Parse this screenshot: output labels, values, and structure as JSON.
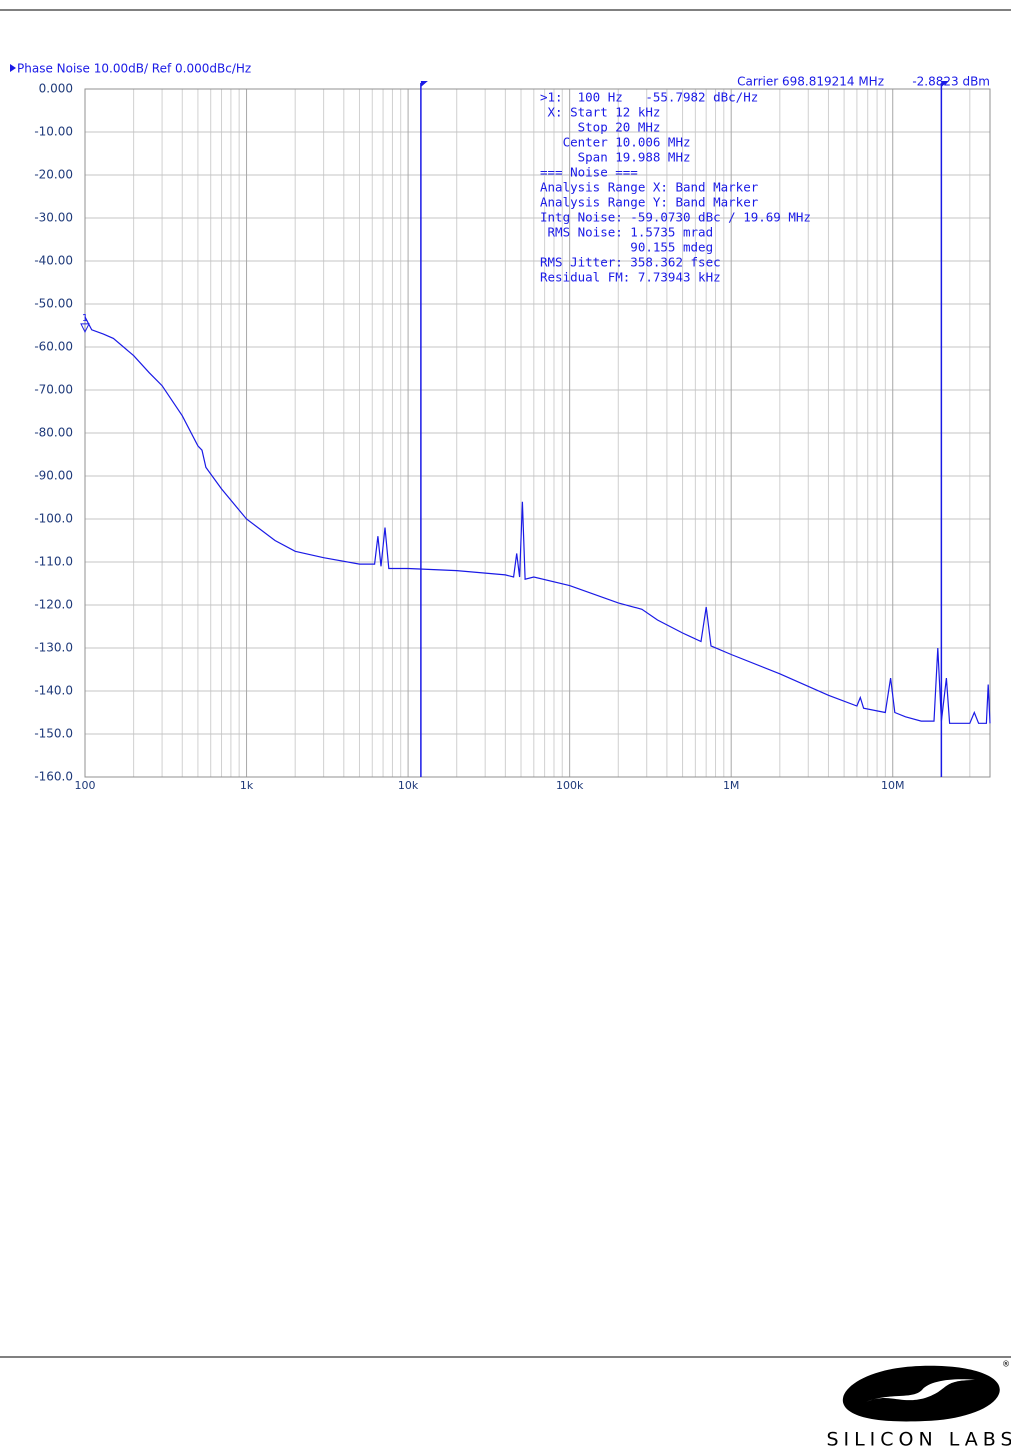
{
  "chart_data": {
    "type": "line",
    "title": "Phase Noise 10.00dB/ Ref 0.000dBc/Hz",
    "carrier": "Carrier 698.819214 MHz",
    "carrier_power": "-2.8823 dBm",
    "log_x": true,
    "grid": true,
    "xlim": [
      100,
      40000000
    ],
    "ylim": [
      -160,
      0
    ],
    "xticks": [
      100,
      {
        "value": 1000,
        "label": "1k"
      },
      {
        "value": 10000,
        "label": "10k"
      },
      {
        "value": 100000,
        "label": "100k"
      },
      {
        "value": 1000000,
        "label": "1M"
      },
      {
        "value": 10000000,
        "label": "10M"
      }
    ],
    "yticks": [
      {
        "value": 0,
        "label": "0.000"
      },
      {
        "value": -10,
        "label": "-10.00"
      },
      {
        "value": -20,
        "label": "-20.00"
      },
      {
        "value": -30,
        "label": "-30.00"
      },
      {
        "value": -40,
        "label": "-40.00"
      },
      {
        "value": -50,
        "label": "-50.00"
      },
      {
        "value": -60,
        "label": "-60.00"
      },
      {
        "value": -70,
        "label": "-70.00"
      },
      {
        "value": -80,
        "label": "-80.00"
      },
      {
        "value": -90,
        "label": "-90.00"
      },
      {
        "value": -100,
        "label": "-100.0"
      },
      {
        "value": -110,
        "label": "-110.0"
      },
      {
        "value": -120,
        "label": "-120.0"
      },
      {
        "value": -130,
        "label": "-130.0"
      },
      {
        "value": -140,
        "label": "-140.0"
      },
      {
        "value": -150,
        "label": "-150.0"
      },
      {
        "value": -160,
        "label": "-160.0"
      }
    ],
    "series": [
      {
        "color": "#1a1ae6",
        "x": [
          100,
          110,
          130,
          150,
          200,
          250,
          300,
          400,
          500,
          530,
          560,
          700,
          1000,
          1500,
          2000,
          3000,
          5000,
          6200,
          6500,
          6800,
          7200,
          7600,
          10000,
          20000,
          40000,
          45000,
          47000,
          49000,
          51000,
          53000,
          60000,
          100000,
          200000,
          280000,
          350000,
          500000,
          650000,
          700000,
          750000,
          1000000,
          2000000,
          4000000,
          6000000,
          6300000,
          6600000,
          9000000,
          9700000,
          10300000,
          12000000,
          15000000,
          18000000,
          19000000,
          20000000,
          21500000,
          22500000,
          30000000,
          32000000,
          34000000,
          38000000,
          39000000,
          40000000
        ],
        "values": [
          -53,
          -56,
          -57,
          -58,
          -62,
          -66,
          -69,
          -76,
          -83,
          -84,
          -88,
          -93,
          -100,
          -105,
          -107.5,
          -109,
          -110.5,
          -110.5,
          -104,
          -111,
          -102,
          -111.5,
          -111.5,
          -112,
          -113,
          -113.5,
          -108,
          -113.5,
          -96,
          -114,
          -113.5,
          -115.5,
          -119.5,
          -121,
          -123.5,
          -126.5,
          -128.5,
          -120.5,
          -129.5,
          -131.5,
          -136,
          -141,
          -143.5,
          -141.5,
          -144,
          -145,
          -137,
          -145,
          -146,
          -147,
          -147,
          -130,
          -147,
          -137,
          -147.5,
          -147.5,
          -145,
          -147.5,
          -147.5,
          -138.5,
          -147.5
        ]
      }
    ],
    "markers": [
      {
        "label": "1",
        "x": 100,
        "y": -55.7982
      }
    ],
    "band_markers": [
      12000,
      20000000
    ],
    "annotations": [
      ">1:  100 Hz   -55.7982 dBc/Hz",
      " X: Start 12 kHz",
      "     Stop 20 MHz",
      "   Center 10.006 MHz",
      "     Span 19.988 MHz",
      "=== Noise ===",
      "Analysis Range X: Band Marker",
      "Analysis Range Y: Band Marker",
      "Intg Noise: -59.0730 dBc / 19.69 MHz",
      " RMS Noise: 1.5735 mrad",
      "            90.155 mdeg",
      "RMS Jitter: 358.362 fsec",
      "Residual FM: 7.73943 kHz"
    ]
  },
  "footer": {
    "logo_text": "SILICON LABS",
    "logo_mark": "®"
  }
}
